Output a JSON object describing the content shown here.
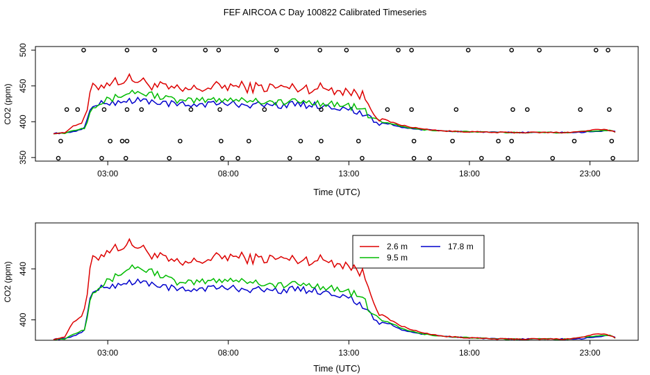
{
  "title": "FEF AIRCOA C  Day 100822  Calibrated Timeseries",
  "colors": {
    "a": "#dd0000",
    "b": "#00bb00",
    "c": "#0000cc",
    "axis": "#000000"
  },
  "chart_data": [
    {
      "type": "line",
      "xlabel": "Time (UTC)",
      "ylabel": "CO2 (ppm)",
      "xlim": [
        0.0,
        25.0
      ],
      "ylim": [
        345,
        505
      ],
      "xticks": [
        3,
        8,
        13,
        18,
        23
      ],
      "xtick_labels": [
        "03:00",
        "08:00",
        "13:00",
        "18:00",
        "23:00"
      ],
      "yticks": [
        350,
        400,
        450,
        500
      ],
      "ytick_labels": [
        "350",
        "400",
        "450",
        "500"
      ],
      "knots_x": [
        0.75,
        1.2,
        1.5,
        2.05,
        2.3,
        3.0,
        4.0,
        5.0,
        6.0,
        7.0,
        8.0,
        9.0,
        10.0,
        11.0,
        12.0,
        13.0,
        13.6,
        13.9,
        14.3,
        14.7,
        15.2,
        16.0,
        17.0,
        18.0,
        19.0,
        20.0,
        21.0,
        22.0,
        22.6,
        23.0,
        23.4,
        23.8,
        24.05
      ],
      "series": [
        {
          "name": "2.6 m",
          "color": "#dd0000",
          "values": [
            384,
            384,
            393,
            400,
            445,
            455,
            460,
            450,
            443,
            447,
            450,
            448,
            448,
            447,
            447,
            443,
            436,
            423,
            405,
            400,
            395,
            390,
            387,
            386,
            385,
            385,
            385,
            385,
            386,
            388,
            389,
            388,
            386
          ]
        },
        {
          "name": "9.5 m",
          "color": "#00bb00",
          "values": [
            384,
            384,
            387,
            392,
            422,
            430,
            442,
            437,
            428,
            430,
            432,
            430,
            427,
            428,
            426,
            422,
            417,
            405,
            400,
            398,
            393,
            389,
            387,
            386,
            385,
            385,
            385,
            385,
            386,
            387,
            388,
            388,
            386
          ]
        },
        {
          "name": "17.8 m",
          "color": "#0000cc",
          "values": [
            384,
            384,
            386,
            390,
            422,
            426,
            430,
            428,
            423,
            425,
            425,
            424,
            423,
            424,
            422,
            418,
            410,
            403,
            398,
            397,
            392,
            389,
            387,
            386,
            385,
            385,
            385,
            385,
            385,
            386,
            387,
            388,
            386
          ]
        }
      ],
      "flags_x": [
        2.0,
        3.8,
        4.95,
        7.05,
        7.6,
        10.0,
        11.8,
        12.9,
        15.05,
        15.6,
        17.95,
        19.75,
        20.9,
        23.25,
        23.75,
        1.3,
        2.85,
        3.8,
        4.4,
        6.45,
        7.65,
        9.5,
        11.85,
        14.6,
        15.6,
        17.45,
        19.8,
        20.4,
        22.6,
        23.8,
        1.75,
        1.05,
        3.1,
        3.6,
        3.8,
        6.0,
        7.7,
        8.85,
        11.0,
        11.85,
        13.4,
        15.7,
        17.3,
        19.2,
        19.75,
        22.35,
        23.9,
        0.95,
        2.75,
        3.75,
        5.55,
        7.75,
        8.4,
        10.55,
        11.7,
        13.55,
        15.7,
        16.35,
        18.5,
        19.6,
        21.45,
        23.95
      ],
      "flags_y": [
        500,
        500,
        500,
        500,
        500,
        500,
        500,
        500,
        500,
        500,
        500,
        500,
        500,
        500,
        500,
        417,
        417,
        417,
        417,
        417,
        417,
        417,
        417,
        417,
        417,
        417,
        417,
        417,
        417,
        417,
        417,
        373,
        373,
        373,
        373,
        373,
        373,
        373,
        373,
        373,
        373,
        373,
        373,
        373,
        373,
        373,
        373,
        349,
        349,
        349,
        349,
        349,
        349,
        349,
        349,
        349,
        349,
        349,
        349,
        349,
        349,
        349
      ]
    },
    {
      "type": "line",
      "xlabel": "Time (UTC)",
      "ylabel": "CO2 (ppm)",
      "xlim": [
        0.0,
        25.0
      ],
      "ylim": [
        384,
        476
      ],
      "xticks": [
        3,
        8,
        13,
        18,
        23
      ],
      "xtick_labels": [
        "03:00",
        "08:00",
        "13:00",
        "18:00",
        "23:00"
      ],
      "yticks": [
        400,
        440
      ],
      "ytick_labels": [
        "400",
        "440"
      ],
      "legend": {
        "position": "top-center",
        "entries": [
          "2.6 m",
          "9.5 m",
          "17.8 m"
        ]
      },
      "knots_x": [
        0.75,
        1.2,
        1.5,
        2.05,
        2.3,
        3.0,
        4.0,
        5.0,
        6.0,
        7.0,
        8.0,
        9.0,
        10.0,
        11.0,
        12.0,
        13.0,
        13.6,
        13.9,
        14.3,
        14.7,
        15.2,
        16.0,
        17.0,
        18.0,
        19.0,
        20.0,
        21.0,
        22.0,
        22.6,
        23.0,
        23.4,
        23.8,
        24.05
      ],
      "series": [
        {
          "name": "2.6 m",
          "color": "#dd0000",
          "values": [
            385,
            386,
            397,
            405,
            445,
            455,
            460,
            450,
            443,
            447,
            450,
            448,
            448,
            447,
            447,
            443,
            436,
            423,
            405,
            400,
            395,
            390,
            387,
            386,
            385,
            385,
            385,
            385,
            386,
            388,
            389,
            388,
            386
          ]
        },
        {
          "name": "9.5 m",
          "color": "#00bb00",
          "values": [
            385,
            385,
            388,
            393,
            422,
            430,
            442,
            437,
            428,
            430,
            432,
            430,
            427,
            428,
            426,
            422,
            417,
            405,
            400,
            398,
            393,
            389,
            387,
            386,
            385,
            385,
            385,
            385,
            386,
            387,
            388,
            388,
            386
          ]
        },
        {
          "name": "17.8 m",
          "color": "#0000cc",
          "values": [
            385,
            385,
            387,
            391,
            422,
            426,
            430,
            428,
            423,
            425,
            425,
            424,
            423,
            424,
            422,
            418,
            410,
            403,
            398,
            397,
            392,
            389,
            387,
            386,
            385,
            385,
            385,
            385,
            385,
            386,
            387,
            388,
            386
          ]
        }
      ]
    }
  ]
}
